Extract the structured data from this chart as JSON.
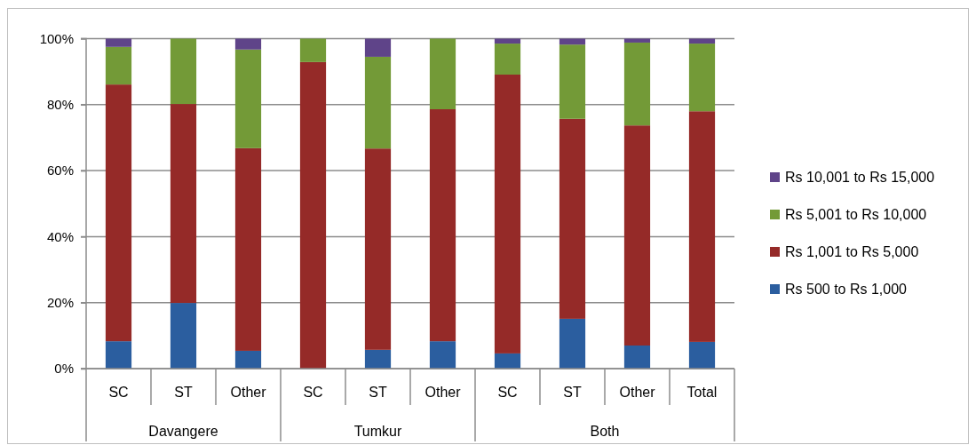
{
  "chart_data": {
    "type": "bar",
    "stacked": true,
    "categories": [
      "SC",
      "ST",
      "Other",
      "SC",
      "ST",
      "Other",
      "SC",
      "ST",
      "Other",
      "Total"
    ],
    "annotations": [
      "Davangere",
      "Tumkur",
      "Both"
    ],
    "series": [
      {
        "name": "Rs 500 to Rs 1,000",
        "color": "#2b5e9f",
        "values": [
          8.3,
          19.9,
          5.4,
          0,
          5.7,
          8.3,
          4.6,
          15.1,
          7.0,
          8.1
        ]
      },
      {
        "name": "Rs 1,001 to Rs 5,000",
        "color": "#952a28",
        "values": [
          77.8,
          60.3,
          61.4,
          92.9,
          61.0,
          70.3,
          84.5,
          60.6,
          66.7,
          69.9
        ]
      },
      {
        "name": "Rs 5,001 to Rs 10,000",
        "color": "#739a37",
        "values": [
          11.4,
          19.8,
          29.9,
          7.1,
          27.8,
          21.4,
          9.4,
          22.5,
          25.1,
          20.5
        ]
      },
      {
        "name": "Rs 10,001 to Rs 15,000",
        "color": "#5f4489",
        "values": [
          2.5,
          0,
          3.3,
          0,
          5.5,
          0,
          1.5,
          1.8,
          1.2,
          1.5
        ]
      }
    ],
    "ylim": [
      0,
      100
    ],
    "yticks": [
      {
        "value": 0,
        "label": "0%"
      },
      {
        "value": 20,
        "label": "20%"
      },
      {
        "value": 40,
        "label": "40%"
      },
      {
        "value": 60,
        "label": "60%"
      },
      {
        "value": 80,
        "label": "80%"
      },
      {
        "value": 100,
        "label": "100%"
      }
    ],
    "grid": "y",
    "legend": "right"
  }
}
